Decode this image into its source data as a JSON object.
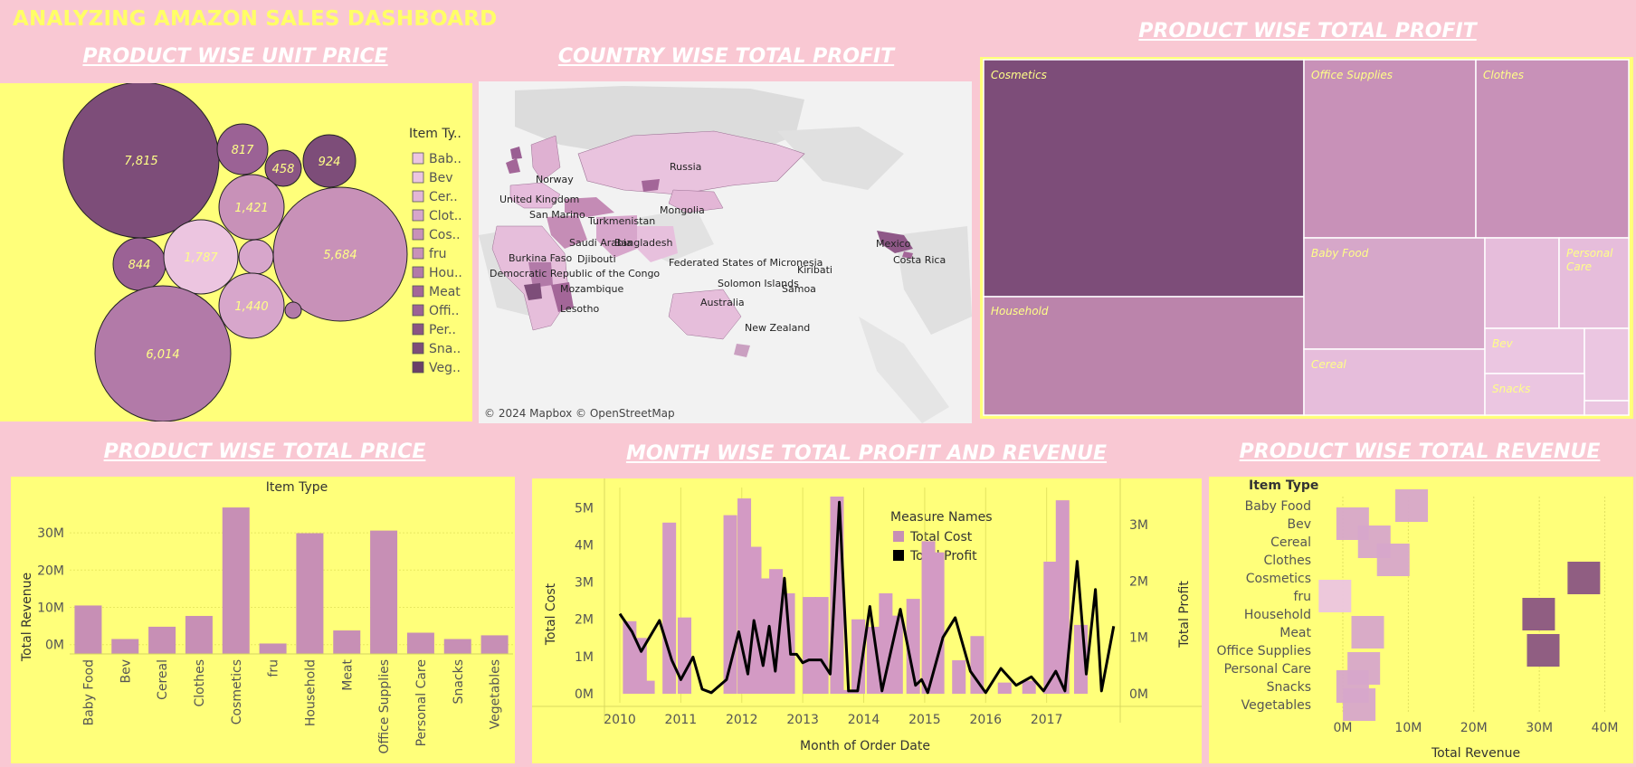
{
  "dashboard_title": "ANALYZING AMAZON SALES DASHBOARD",
  "section_titles": {
    "unit_price": "PRODUCT WISE  UNIT PRICE",
    "country_profit": "COUNTRY WISE TOTAL PROFIT",
    "total_profit": "PRODUCT WISE TOTAL PROFIT",
    "total_price": "PRODUCT WISE TOTAL PRICE",
    "month_profit_revenue": "MONTH WISE TOTAL PROFIT AND REVENUE",
    "total_revenue": "PRODUCT WISE TOTAL REVENUE"
  },
  "colors": {
    "background": "#f9c8d3",
    "panel": "#ffff7a",
    "title_yellow": "#ffff66",
    "dark_purple": "#7d4d79",
    "mid_purple": "#c78fb5",
    "light_pink": "#ecc2de",
    "line_black": "#000000"
  },
  "chart_data": [
    {
      "id": "bubble",
      "type": "bubble",
      "legend_title": "Item Ty..",
      "legend_items": [
        "Bab..",
        "Bev",
        "Cer..",
        "Clot..",
        "Cos..",
        "fru",
        "Hou..",
        "Meat",
        "Offi..",
        "Per..",
        "Sna..",
        "Veg.."
      ],
      "bubbles": [
        {
          "label": "7,815",
          "value": 7815
        },
        {
          "label": "817",
          "value": 817
        },
        {
          "label": "458",
          "value": 458
        },
        {
          "label": "924",
          "value": 924
        },
        {
          "label": "1,421",
          "value": 1421
        },
        {
          "label": "5,684",
          "value": 5684
        },
        {
          "label": "844",
          "value": 844
        },
        {
          "label": "1,787",
          "value": 1787
        },
        {
          "label": "",
          "value": null
        },
        {
          "label": "1,440",
          "value": 1440
        },
        {
          "label": "",
          "value": null
        },
        {
          "label": "6,014",
          "value": 6014
        }
      ]
    },
    {
      "id": "map",
      "type": "map",
      "countries": [
        "Russia",
        "Norway",
        "United Kingdom",
        "San Marino",
        "Turkmenistan",
        "Mongolia",
        "Saudi Arabia",
        "Bangladesh",
        "Burkina Faso",
        "Djibouti",
        "Democratic Republic of the Congo",
        "Federated States of Micronesia",
        "Kiribati",
        "Mexico",
        "Costa Rica",
        "Solomon Islands",
        "Samoa",
        "Mozambique",
        "Australia",
        "Lesotho",
        "New Zealand"
      ],
      "credit": "© 2024 Mapbox © OpenStreetMap"
    },
    {
      "id": "treemap",
      "type": "treemap",
      "categories": [
        "Cosmetics",
        "Household",
        "Office Supplies",
        "Clothes",
        "Baby Food",
        "Cereal",
        "Personal Care",
        "Bev",
        "Snacks"
      ]
    },
    {
      "id": "total_price",
      "type": "bar",
      "title": "Item Type",
      "ylabel": "Total Revenue",
      "categories": [
        "Baby Food",
        "Bev",
        "Cereal",
        "Clothes",
        "Cosmetics",
        "fru",
        "Household",
        "Meat",
        "Office Supplies",
        "Personal Care",
        "Snacks",
        "Vegetables"
      ],
      "values": [
        10.5,
        1.5,
        4.8,
        7.7,
        36.8,
        0.3,
        29.9,
        3.8,
        30.6,
        3.2,
        1.5,
        2.5
      ],
      "yticks": [
        "0M",
        "10M",
        "20M",
        "30M"
      ],
      "ylim": [
        -2.5,
        39
      ]
    },
    {
      "id": "month_profit_revenue",
      "type": "bar+line",
      "xlabel": "Month of Order Date",
      "ylabel_left": "Total Cost",
      "ylabel_right": "Total Profit",
      "legend_title": "Measure Names",
      "legend_items": [
        "Total Cost",
        "Total Profit"
      ],
      "xticks": [
        "2010",
        "2011",
        "2012",
        "2013",
        "2014",
        "2015",
        "2016",
        "2017"
      ],
      "yticks_left": [
        "0M",
        "1M",
        "2M",
        "3M",
        "4M",
        "5M"
      ],
      "yticks_right": [
        "0M",
        "1M",
        "2M",
        "3M"
      ],
      "cost_bars": [
        {
          "year": 2010.05,
          "value": 1.95
        },
        {
          "year": 2010.22,
          "value": 1.5
        },
        {
          "year": 2010.35,
          "value": 0.35
        },
        {
          "year": 2010.7,
          "value": 4.6
        },
        {
          "year": 2010.95,
          "value": 2.05
        },
        {
          "year": 2011.7,
          "value": 4.8
        },
        {
          "year": 2011.93,
          "value": 5.25
        },
        {
          "year": 2012.1,
          "value": 3.95
        },
        {
          "year": 2012.32,
          "value": 3.1
        },
        {
          "year": 2012.45,
          "value": 3.35
        },
        {
          "year": 2012.65,
          "value": 2.7
        },
        {
          "year": 2013.0,
          "value": 2.6
        },
        {
          "year": 2013.2,
          "value": 2.6
        },
        {
          "year": 2013.45,
          "value": 5.3
        },
        {
          "year": 2013.6,
          "value": 0.1
        },
        {
          "year": 2013.8,
          "value": 2.0
        },
        {
          "year": 2014.05,
          "value": 1.8
        },
        {
          "year": 2014.25,
          "value": 2.7
        },
        {
          "year": 2014.42,
          "value": 2.1
        },
        {
          "year": 2014.7,
          "value": 2.55
        },
        {
          "year": 2014.95,
          "value": 4.1
        },
        {
          "year": 2015.1,
          "value": 3.8
        },
        {
          "year": 2015.45,
          "value": 0.9
        },
        {
          "year": 2015.75,
          "value": 1.55
        },
        {
          "year": 2016.2,
          "value": 0.3
        },
        {
          "year": 2016.6,
          "value": 0.35
        },
        {
          "year": 2016.95,
          "value": 3.55
        },
        {
          "year": 2017.15,
          "value": 5.2
        },
        {
          "year": 2017.45,
          "value": 1.85
        }
      ],
      "profit_line": [
        [
          2010.0,
          1.42
        ],
        [
          2010.2,
          1.1
        ],
        [
          2010.35,
          0.75
        ],
        [
          2010.65,
          1.3
        ],
        [
          2010.85,
          0.6
        ],
        [
          2011.0,
          0.25
        ],
        [
          2011.2,
          0.65
        ],
        [
          2011.35,
          0.08
        ],
        [
          2011.5,
          0.02
        ],
        [
          2011.75,
          0.25
        ],
        [
          2011.95,
          1.1
        ],
        [
          2012.1,
          0.35
        ],
        [
          2012.2,
          1.3
        ],
        [
          2012.35,
          0.5
        ],
        [
          2012.45,
          1.2
        ],
        [
          2012.55,
          0.4
        ],
        [
          2012.7,
          2.05
        ],
        [
          2012.8,
          0.7
        ],
        [
          2012.9,
          0.7
        ],
        [
          2013.0,
          0.55
        ],
        [
          2013.1,
          0.6
        ],
        [
          2013.3,
          0.6
        ],
        [
          2013.45,
          0.35
        ],
        [
          2013.6,
          3.4
        ],
        [
          2013.75,
          0.05
        ],
        [
          2013.9,
          0.05
        ],
        [
          2014.1,
          1.55
        ],
        [
          2014.3,
          0.05
        ],
        [
          2014.6,
          1.5
        ],
        [
          2014.85,
          0.15
        ],
        [
          2014.95,
          0.25
        ],
        [
          2015.05,
          0.02
        ],
        [
          2015.3,
          1.0
        ],
        [
          2015.5,
          1.35
        ],
        [
          2015.75,
          0.4
        ],
        [
          2016.0,
          0.02
        ],
        [
          2016.25,
          0.45
        ],
        [
          2016.5,
          0.15
        ],
        [
          2016.75,
          0.3
        ],
        [
          2016.95,
          0.05
        ],
        [
          2017.15,
          0.4
        ],
        [
          2017.3,
          0.05
        ],
        [
          2017.5,
          2.35
        ],
        [
          2017.65,
          0.35
        ],
        [
          2017.8,
          1.85
        ],
        [
          2017.9,
          0.05
        ],
        [
          2018.1,
          1.2
        ]
      ]
    },
    {
      "id": "total_revenue",
      "type": "box/gantt",
      "title": "Item Type",
      "xlabel": "Total Revenue",
      "categories": [
        "Baby Food",
        "Bev",
        "Cereal",
        "Clothes",
        "Cosmetics",
        "fru",
        "Household",
        "Meat",
        "Office Supplies",
        "Personal Care",
        "Snacks",
        "Vegetables"
      ],
      "xticks": [
        "0M",
        "10M",
        "20M",
        "30M",
        "40M"
      ],
      "boxes": [
        {
          "category": "Baby Food",
          "center": 10.5
        },
        {
          "category": "Bev",
          "center": 1.5
        },
        {
          "category": "Cereal",
          "center": 4.8
        },
        {
          "category": "Clothes",
          "center": 7.7
        },
        {
          "category": "Cosmetics",
          "center": 36.8
        },
        {
          "category": "fru",
          "center": -1.2
        },
        {
          "category": "Household",
          "center": 29.9
        },
        {
          "category": "Meat",
          "center": 3.8
        },
        {
          "category": "Office Supplies",
          "center": 30.6
        },
        {
          "category": "Personal Care",
          "center": 3.2
        },
        {
          "category": "Snacks",
          "center": 1.5
        },
        {
          "category": "Vegetables",
          "center": 2.5
        }
      ]
    }
  ]
}
